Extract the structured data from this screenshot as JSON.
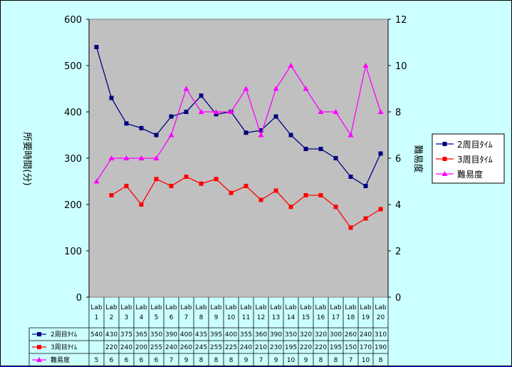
{
  "chart_data": {
    "type": "line",
    "categories": [
      "Lab 1",
      "Lab 2",
      "Lab 3",
      "Lab 4",
      "Lab 5",
      "Lab 6",
      "Lab 7",
      "Lab 8",
      "Lab 9",
      "Lab 10",
      "Lab 11",
      "Lab 12",
      "Lab 13",
      "Lab 14",
      "Lab 15",
      "Lab 16",
      "Lab 17",
      "Lab 18",
      "Lab 19",
      "Lab 20"
    ],
    "category_parts": [
      [
        "Lab",
        "1"
      ],
      [
        "Lab",
        "2"
      ],
      [
        "Lab",
        "3"
      ],
      [
        "Lab",
        "4"
      ],
      [
        "Lab",
        "5"
      ],
      [
        "Lab",
        "6"
      ],
      [
        "Lab",
        "7"
      ],
      [
        "Lab",
        "8"
      ],
      [
        "Lab",
        "9"
      ],
      [
        "Lab",
        "10"
      ],
      [
        "Lab",
        "11"
      ],
      [
        "Lab",
        "12"
      ],
      [
        "Lab",
        "13"
      ],
      [
        "Lab",
        "14"
      ],
      [
        "Lab",
        "15"
      ],
      [
        "Lab",
        "16"
      ],
      [
        "Lab",
        "17"
      ],
      [
        "Lab",
        "18"
      ],
      [
        "Lab",
        "19"
      ],
      [
        "Lab",
        "20"
      ]
    ],
    "ylabel": "所要時間(分)",
    "y2label": "難易度",
    "ylim": [
      0,
      600
    ],
    "y_ticks": [
      "0",
      "100",
      "200",
      "300",
      "400",
      "500",
      "600"
    ],
    "y2lim": [
      0,
      12
    ],
    "y2_ticks": [
      "0",
      "2",
      "4",
      "6",
      "8",
      "10",
      "12"
    ],
    "legend_position": "right",
    "grid": false,
    "series": [
      {
        "name": "2周目ﾀｲﾑ",
        "axis": "left",
        "color": "#000080",
        "marker": "square",
        "values": [
          540,
          430,
          375,
          365,
          350,
          390,
          400,
          435,
          395,
          400,
          355,
          360,
          390,
          350,
          320,
          320,
          300,
          260,
          240,
          310
        ]
      },
      {
        "name": "3周目ﾀｲﾑ",
        "axis": "left",
        "color": "#ff0000",
        "marker": "square",
        "values": [
          null,
          220,
          240,
          200,
          255,
          240,
          260,
          245,
          255,
          225,
          240,
          210,
          230,
          195,
          220,
          220,
          195,
          150,
          170,
          190
        ]
      },
      {
        "name": "難易度",
        "axis": "right",
        "color": "#ff00ff",
        "marker": "triangle",
        "values": [
          5,
          6,
          6,
          6,
          6,
          7,
          9,
          8,
          8,
          8,
          9,
          7,
          9,
          10,
          9,
          8,
          8,
          7,
          10,
          8
        ]
      }
    ]
  }
}
